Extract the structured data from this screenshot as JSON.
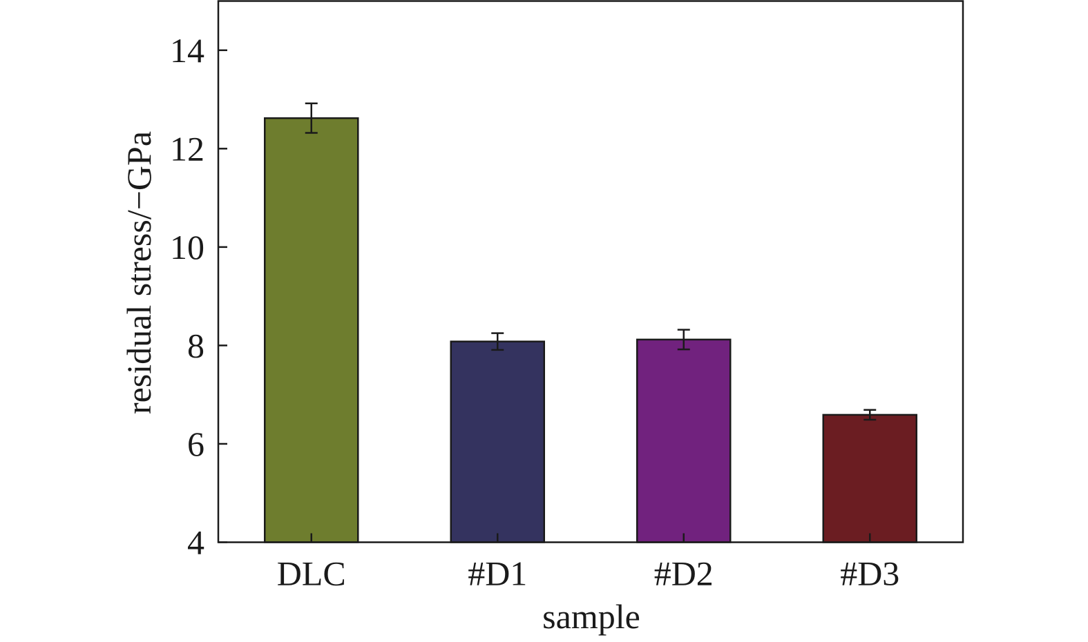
{
  "chart_data": {
    "type": "bar",
    "categories": [
      "DLC",
      "#D1",
      "#D2",
      "#D3"
    ],
    "values": [
      12.62,
      8.08,
      8.12,
      6.59
    ],
    "errors": [
      0.3,
      0.17,
      0.2,
      0.1
    ],
    "colors": [
      "#6e7d2e",
      "#34335f",
      "#71227e",
      "#6b1d22"
    ],
    "title": "",
    "xlabel": "sample",
    "ylabel": "residual stress/−GPa",
    "ylim": [
      4,
      15
    ],
    "yticks": [
      "4",
      "6",
      "8",
      "10",
      "12",
      "14"
    ],
    "grid": false,
    "legend": "none"
  }
}
